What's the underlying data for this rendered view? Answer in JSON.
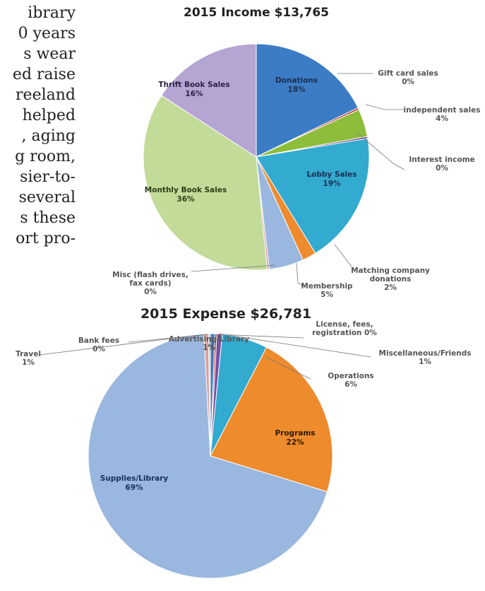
{
  "article": {
    "lines": [
      "ibrary",
      "0 years",
      "s wear",
      "ed raise",
      "reeland",
      "helped",
      ", aging",
      "g room,",
      "sier-to-",
      "several",
      "s these",
      "ort pro-"
    ]
  },
  "chart_data": [
    {
      "type": "pie",
      "title": "2015 Income $13,765",
      "slices": [
        {
          "label": "Donations",
          "value": 18,
          "pct_text": "18%",
          "color": "#3b7cc4",
          "text_color": "#1a2f55",
          "label_inside": true
        },
        {
          "label": "Gift card sales",
          "value": 0.3,
          "pct_text": "0%",
          "color": "#c03b36",
          "text_color": "#555555",
          "label_inside": false
        },
        {
          "label": "independent sales",
          "value": 4,
          "pct_text": "4%",
          "color": "#8dbd3b",
          "text_color": "#555555",
          "label_inside": false
        },
        {
          "label": "Interest income",
          "value": 0.3,
          "pct_text": "0%",
          "color": "#7a4fa0",
          "text_color": "#555555",
          "label_inside": false
        },
        {
          "label": "Lobby Sales",
          "value": 19,
          "pct_text": "19%",
          "color": "#33aacf",
          "text_color": "#1a2f55",
          "label_inside": true
        },
        {
          "label": "Matching company donations",
          "value": 2,
          "pct_text": "2%",
          "color": "#ed8b2d",
          "text_color": "#555555",
          "label_inside": false
        },
        {
          "label": "Membership",
          "value": 5,
          "pct_text": "5%",
          "color": "#9ab7df",
          "text_color": "#555555",
          "label_inside": false
        },
        {
          "label": "Misc (flash drives, fax cards)",
          "value": 0.3,
          "pct_text": "0%",
          "color": "#d9a19e",
          "text_color": "#555555",
          "label_inside": false
        },
        {
          "label": "Monthly Book Sales",
          "value": 36,
          "pct_text": "36%",
          "color": "#c2db99",
          "text_color": "#2b3d14",
          "label_inside": true
        },
        {
          "label": "Thrift Book Sales",
          "value": 16,
          "pct_text": "16%",
          "color": "#b4a5d3",
          "text_color": "#2b2244",
          "label_inside": true
        }
      ]
    },
    {
      "type": "pie",
      "title": "2015 Expense $26,781",
      "slices": [
        {
          "label": "Advertising/Library",
          "value": 0.6,
          "pct_text": "1%",
          "color": "#3b7cc4",
          "text_color": "#555555",
          "label_inside": false
        },
        {
          "label": "License, fees, registration",
          "value": 0.25,
          "pct_text": "0%",
          "color": "#c03b36",
          "text_color": "#555555",
          "label_inside": false
        },
        {
          "label": "Miscellaneous/Friends",
          "value": 0.7,
          "pct_text": "1%",
          "color": "#7a4fa0",
          "text_color": "#555555",
          "label_inside": false
        },
        {
          "label": "Operations",
          "value": 6,
          "pct_text": "6%",
          "color": "#33aacf",
          "text_color": "#555555",
          "label_inside": false
        },
        {
          "label": "Programs",
          "value": 22,
          "pct_text": "22%",
          "color": "#ed8b2d",
          "text_color": "#2b1a00",
          "label_inside": true
        },
        {
          "label": "Supplies/Library",
          "value": 69,
          "pct_text": "69%",
          "color": "#9ab7df",
          "text_color": "#1a2f55",
          "label_inside": true
        },
        {
          "label": "Travel",
          "value": 0.6,
          "pct_text": "1%",
          "color": "#d9a19e",
          "text_color": "#555555",
          "label_inside": false
        },
        {
          "label": "Bank fees",
          "value": 0.25,
          "pct_text": "0%",
          "color": "#c2db99",
          "text_color": "#555555",
          "label_inside": false
        }
      ]
    }
  ]
}
